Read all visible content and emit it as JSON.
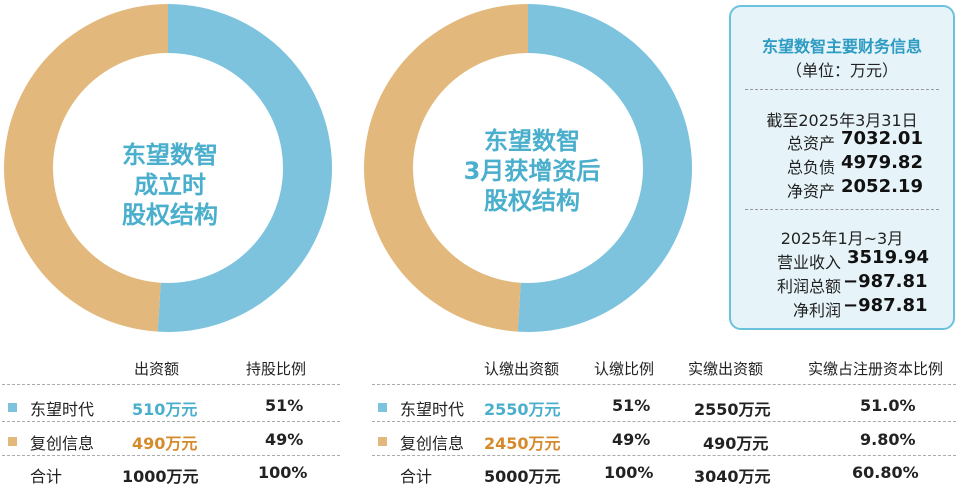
{
  "colors": {
    "blue": "#7dc3de",
    "orange": "#e3b87d",
    "blue_text": "#4aaecd",
    "orange_text": "#d58a2c"
  },
  "chart_data": [
    {
      "type": "pie",
      "title_lines": [
        "东望数智",
        "成立时",
        "股权结构"
      ],
      "labels": [
        "东望时代",
        "复创信息"
      ],
      "values": [
        51,
        49
      ],
      "colors": [
        "#7dc3de",
        "#e3b87d"
      ]
    },
    {
      "type": "pie",
      "title_lines": [
        "东望数智",
        "3月获增资后",
        "股权结构"
      ],
      "labels": [
        "东望时代",
        "复创信息"
      ],
      "values": [
        51,
        49
      ],
      "colors": [
        "#7dc3de",
        "#e3b87d"
      ]
    }
  ],
  "finance": {
    "title": "东望数智主要财务信息",
    "unit": "（单位：万元）",
    "section1": {
      "heading": "截至2025年3月31日",
      "rows": [
        {
          "label": "总资产",
          "value": "7032.01"
        },
        {
          "label": "总负债",
          "value": "4979.82"
        },
        {
          "label": "净资产",
          "value": "2052.19"
        }
      ]
    },
    "section2": {
      "heading": "2025年1月~3月",
      "rows": [
        {
          "label": "营业收入",
          "value": "3519.94"
        },
        {
          "label": "利润总额",
          "value": "−987.81"
        },
        {
          "label": "净利润",
          "value": "−987.81"
        }
      ]
    }
  },
  "table1": {
    "headers": [
      "出资额",
      "持股比例"
    ],
    "rows": [
      {
        "name": "东望时代",
        "amount": "510万元",
        "ratio": "51%"
      },
      {
        "name": "复创信息",
        "amount": "490万元",
        "ratio": "49%"
      },
      {
        "name": "合计",
        "amount": "1000万元",
        "ratio": "100%"
      }
    ]
  },
  "table2": {
    "headers": [
      "认缴出资额",
      "认缴比例",
      "实缴出资额",
      "实缴占注册资本比例"
    ],
    "rows": [
      {
        "name": "东望时代",
        "sub_amount": "2550万元",
        "sub_ratio": "51%",
        "paid_amount": "2550万元",
        "paid_ratio": "51.0%"
      },
      {
        "name": "复创信息",
        "sub_amount": "2450万元",
        "sub_ratio": "49%",
        "paid_amount": "490万元",
        "paid_ratio": "9.80%"
      },
      {
        "name": "合计",
        "sub_amount": "5000万元",
        "sub_ratio": "100%",
        "paid_amount": "3040万元",
        "paid_ratio": "60.80%"
      }
    ]
  }
}
